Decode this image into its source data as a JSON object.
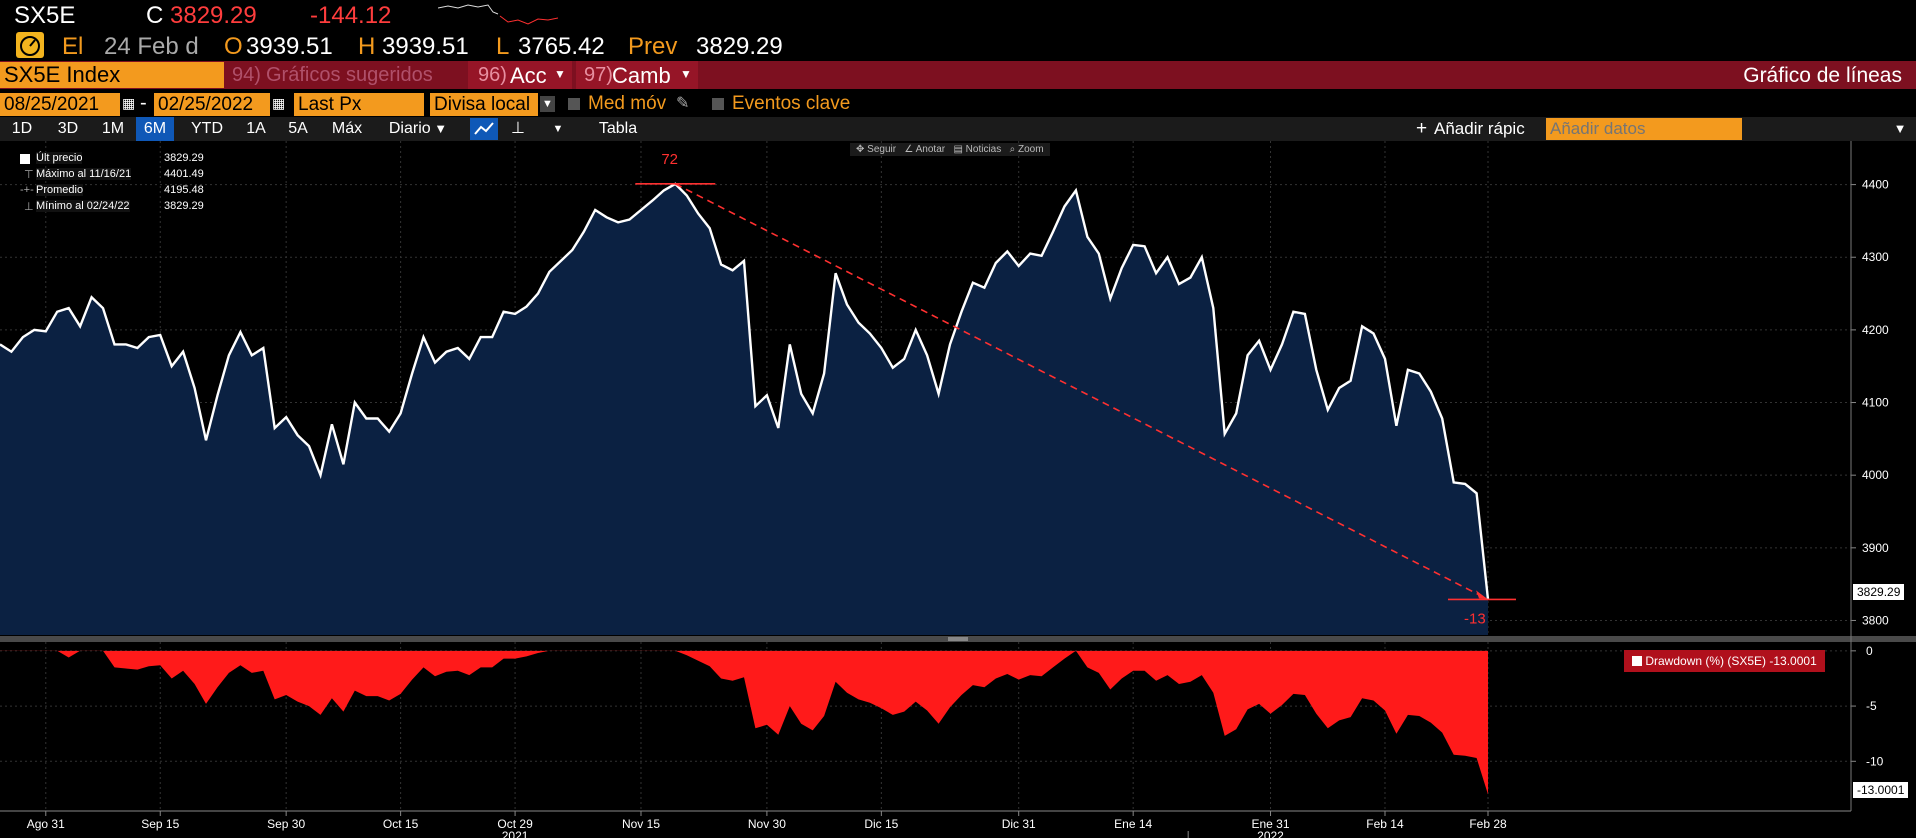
{
  "header": {
    "ticker": "SX5E",
    "close_label": "C",
    "close": "3829.29",
    "change": "-144.12",
    "date_prefix": "El",
    "date": "24 Feb d",
    "open_label": "O",
    "open": "3939.51",
    "high_label": "H",
    "high": "3939.51",
    "low_label": "L",
    "low": "3765.42",
    "prev_label": "Prev",
    "prev": "3829.29"
  },
  "toolbar": {
    "security": "SX5E Index",
    "suggested_num": "94)",
    "suggested": "Gráficos sugeridos",
    "actions_num": "96)",
    "actions": "Acc",
    "change_num": "97)",
    "change": "Camb",
    "chart_type": "Gráfico de líneas"
  },
  "selectors": {
    "start_date": "08/25/2021",
    "end_date": "02/25/2022",
    "field": "Last Px",
    "currency": "Divisa local",
    "moving_avg": "Med móv",
    "key_events": "Eventos clave"
  },
  "tabs": {
    "periods": [
      "1D",
      "3D",
      "1M",
      "6M",
      "YTD",
      "1A",
      "5A",
      "Máx"
    ],
    "active": "6M",
    "frequency": "Diario",
    "table": "Tabla",
    "add_quick": "Añadir rápic",
    "add_data_placeholder": "Añadir datos"
  },
  "chart_tools": [
    "Seguir",
    "Anotar",
    "Noticias",
    "Zoom"
  ],
  "legend": [
    {
      "label": "Últ precio",
      "value": "3829.29"
    },
    {
      "label": "Máximo al 11/16/21",
      "value": "4401.49"
    },
    {
      "label": "Promedio",
      "value": "4195.48"
    },
    {
      "label": "Mínimo al 02/24/22",
      "value": "3829.29"
    }
  ],
  "colors": {
    "orange": "#f39a1e",
    "red_bar": "#7d1020",
    "area_fill": "#0b2142",
    "line": "#ffffff",
    "drawdown": "#ff1a1a",
    "annotation": "#ff3030"
  },
  "chart_data": [
    {
      "type": "area",
      "series": [
        {
          "name": "Últ precio",
          "values": [
            4180,
            4170,
            4190,
            4200,
            4198,
            4225,
            4230,
            4205,
            4245,
            4230,
            4180,
            4180,
            4175,
            4190,
            4193,
            4150,
            4170,
            4120,
            4048,
            4110,
            4165,
            4197,
            4165,
            4175,
            4065,
            4080,
            4055,
            4040,
            4000,
            4070,
            4015,
            4100,
            4078,
            4078,
            4060,
            4085,
            4140,
            4190,
            4155,
            4170,
            4175,
            4160,
            4190,
            4190,
            4225,
            4222,
            4232,
            4250,
            4280,
            4295,
            4310,
            4335,
            4365,
            4355,
            4348,
            4352,
            4365,
            4378,
            4392,
            4401,
            4385,
            4360,
            4340,
            4290,
            4282,
            4295,
            4095,
            4110,
            4065,
            4180,
            4112,
            4085,
            4140,
            4278,
            4235,
            4210,
            4195,
            4175,
            4148,
            4160,
            4200,
            4165,
            4112,
            4180,
            4225,
            4265,
            4258,
            4292,
            4308,
            4288,
            4305,
            4302,
            4335,
            4370,
            4392,
            4328,
            4305,
            4243,
            4285,
            4317,
            4315,
            4278,
            4300,
            4263,
            4272,
            4300,
            4230,
            4057,
            4085,
            4165,
            4185,
            4145,
            4180,
            4225,
            4222,
            4145,
            4090,
            4120,
            4130,
            4205,
            4195,
            4160,
            4068,
            4145,
            4140,
            4115,
            4078,
            3990,
            3988,
            3975,
            3829
          ]
        }
      ],
      "x_ticks": [
        "Ago 31",
        "Sep 15",
        "Sep 30",
        "Oct 15",
        "Oct 29",
        "Nov 15",
        "Nov 30",
        "Dic 15",
        "Dic 31",
        "Ene 14",
        "Ene 31",
        "Feb 14",
        "Feb 28"
      ],
      "year_labels": [
        "2021",
        "2022"
      ],
      "y_ticks": [
        3800,
        3900,
        4000,
        4100,
        4200,
        4300,
        4400
      ],
      "ylim": [
        3780,
        4460
      ],
      "last_value_label": "3829.29",
      "annotation": {
        "from_label": "72",
        "to_label": "-13"
      }
    },
    {
      "type": "area",
      "series": [
        {
          "name": "Drawdown (%) (SX5E)",
          "values": [
            0,
            0,
            0,
            0,
            0,
            0,
            -0.6,
            0,
            0,
            0,
            -1.5,
            -1.6,
            -1.7,
            -1.4,
            -1.3,
            -2.5,
            -1.8,
            -3.0,
            -4.8,
            -3.3,
            -2.0,
            -1.3,
            -2.0,
            -1.8,
            -4.4,
            -4.0,
            -4.6,
            -5.0,
            -5.8,
            -4.3,
            -5.5,
            -3.6,
            -4.1,
            -4.1,
            -4.5,
            -3.9,
            -2.6,
            -1.5,
            -2.3,
            -1.9,
            -1.8,
            -2.2,
            -1.5,
            -1.5,
            -0.7,
            -0.7,
            -0.5,
            -0.2,
            0,
            0,
            0,
            0,
            0,
            0,
            0,
            0,
            0,
            0,
            0,
            0,
            -0.4,
            -0.9,
            -1.4,
            -2.5,
            -2.7,
            -2.4,
            -7.0,
            -6.7,
            -7.6,
            -5.0,
            -6.6,
            -7.2,
            -5.9,
            -2.8,
            -3.8,
            -4.4,
            -4.7,
            -5.2,
            -5.8,
            -5.5,
            -4.6,
            -5.4,
            -6.6,
            -5.1,
            -4.0,
            -3.1,
            -3.3,
            -2.5,
            -2.1,
            -2.6,
            -2.2,
            -2.3,
            -1.5,
            -0.7,
            0,
            -1.5,
            -2.0,
            -3.5,
            -2.5,
            -1.8,
            -1.8,
            -2.7,
            -2.2,
            -3.0,
            -2.8,
            -2.2,
            -3.8,
            -7.7,
            -7.1,
            -5.3,
            -4.8,
            -5.7,
            -4.9,
            -3.9,
            -4.0,
            -5.7,
            -7.0,
            -6.3,
            -6.0,
            -4.3,
            -4.5,
            -5.4,
            -7.5,
            -5.8,
            -5.9,
            -6.5,
            -7.4,
            -9.4,
            -9.5,
            -9.7,
            -13.0
          ]
        }
      ],
      "y_ticks": [
        0,
        -5,
        -10
      ],
      "ylim": [
        -14.5,
        0.8
      ],
      "legend_label": "Drawdown (%) (SX5E) -13.0001",
      "last_value_label": "-13.0001"
    }
  ]
}
